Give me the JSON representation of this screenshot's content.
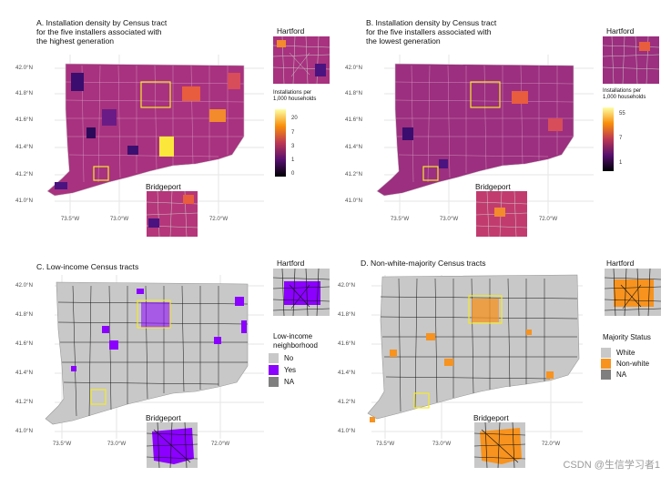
{
  "panels": {
    "a": {
      "title": "A. Installation density by Census tract\n for the five installers associated with\n the highest generation",
      "inset_hartford": "Hartford",
      "inset_bridgeport": "Bridgeport",
      "legend_title": "Installations per\n 1,000 households",
      "legend_ticks": [
        "20",
        "7",
        "3",
        "1",
        "0"
      ]
    },
    "b": {
      "title": "B. Installation density by Census tract\n for the five installers associated with\n the lowest generation",
      "inset_hartford": "Hartford",
      "inset_bridgeport": "Bridgeport",
      "legend_title": "Installations per\n 1,000 households",
      "legend_ticks": [
        "55",
        "7",
        "1"
      ]
    },
    "c": {
      "title": "C. Low-income Census tracts",
      "inset_hartford": "Hartford",
      "inset_bridgeport": "Bridgeport",
      "legend_title": "Low-income\nneighborhood",
      "legend_items": [
        {
          "label": "No",
          "color": "#c8c8c8"
        },
        {
          "label": "Yes",
          "color": "#8b00ff"
        },
        {
          "label": "NA",
          "color": "#7f7f7f"
        }
      ]
    },
    "d": {
      "title": "D. Non-white-majority Census tracts",
      "inset_hartford": "Hartford",
      "inset_bridgeport": "Bridgeport",
      "legend_title": "Majority Status",
      "legend_items": [
        {
          "label": "White",
          "color": "#c8c8c8"
        },
        {
          "label": "Non-white",
          "color": "#f7931e"
        },
        {
          "label": "NA",
          "color": "#7f7f7f"
        }
      ]
    }
  },
  "axes": {
    "lat_labels": [
      "42.0°N",
      "41.8°N",
      "41.6°N",
      "41.4°N",
      "41.2°N",
      "41.0°N"
    ],
    "lon_labels": [
      "73.5°W",
      "73.0°W",
      "72.0°W"
    ]
  },
  "colors": {
    "density_low": "#1b0c41",
    "density_mid": "#b5367a",
    "density_high": "#fcffa4",
    "highlight_box": "#f5e82a",
    "lowincome": "#8b00ff",
    "nonwhite": "#f7931e",
    "base_grey": "#c8c8c8",
    "na_grey": "#7f7f7f"
  },
  "watermark": "CSDN @生信学习者1"
}
